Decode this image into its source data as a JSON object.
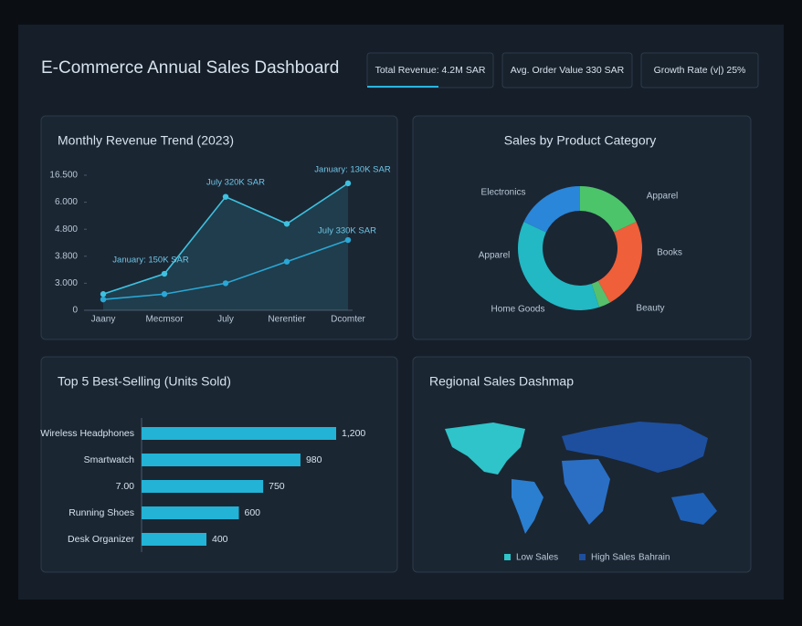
{
  "header": {
    "title": "E-Commerce Annual Sales Dashboard"
  },
  "kpis": [
    "Total Revenue: 4.2M SAR",
    "Avg. Order Value 330 SAR",
    "Growth Rate (v|) 25%"
  ],
  "chart_data": [
    {
      "type": "line",
      "title": "Monthly Revenue Trend (2023)",
      "categories": [
        "Jaany",
        "Mecmsor",
        "July",
        "Nerentier",
        "Dcomter"
      ],
      "series": [
        {
          "color": "#3ec1e0",
          "values": [
            0.6,
            1.35,
            4.2,
            3.2,
            4.7
          ],
          "area": true
        },
        {
          "color": "#2aa7d6",
          "values": [
            0.4,
            0.6,
            1.0,
            1.8,
            2.6
          ]
        }
      ],
      "ylim": [
        0,
        5
      ],
      "yticks": [
        {
          "value": 0,
          "label": "0"
        },
        {
          "value": 1,
          "label": "3.000"
        },
        {
          "value": 2,
          "label": "3.800"
        },
        {
          "value": 3,
          "label": "4.800"
        },
        {
          "value": 4,
          "label": "6.000"
        },
        {
          "value": 5,
          "label": "16.500"
        }
      ],
      "annotations": [
        "January: 150K SAR",
        "July 320K SAR",
        "January: 130K SAR",
        "July 330K SAR"
      ]
    },
    {
      "type": "pie",
      "title": "Sales by Product Category",
      "donut": true,
      "categories": [
        "Apparel",
        "Books",
        "Beauty",
        "Home Goods",
        "Electronics"
      ],
      "values": [
        18,
        24,
        3,
        37,
        18
      ],
      "colors": [
        "#4cc46a",
        "#ee5f3a",
        "#57c06b",
        "#22b8c4",
        "#2a86d8"
      ],
      "annotations": [
        "Apparel"
      ]
    },
    {
      "type": "bar",
      "orientation": "horizontal",
      "title": "Top 5 Best-Selling (Units Sold)",
      "categories": [
        "Wireless Headphones",
        "Smartwatch",
        "7.00",
        "Running Shoes",
        "Desk Organizer"
      ],
      "values": [
        1200,
        980,
        750,
        600,
        400
      ],
      "value_labels": [
        "1,200",
        "980",
        "750",
        "600",
        "400"
      ],
      "xlim": [
        0,
        1200
      ],
      "color": "#22b3d6"
    },
    {
      "type": "map",
      "title": "Regional Sales Dashmap",
      "legend": [
        {
          "label": "Low Sales",
          "color": "#2ec4c9"
        },
        {
          "label": "High Sales",
          "color": "#1d4f9e"
        }
      ],
      "annotations": [
        "Bahrain"
      ]
    }
  ]
}
